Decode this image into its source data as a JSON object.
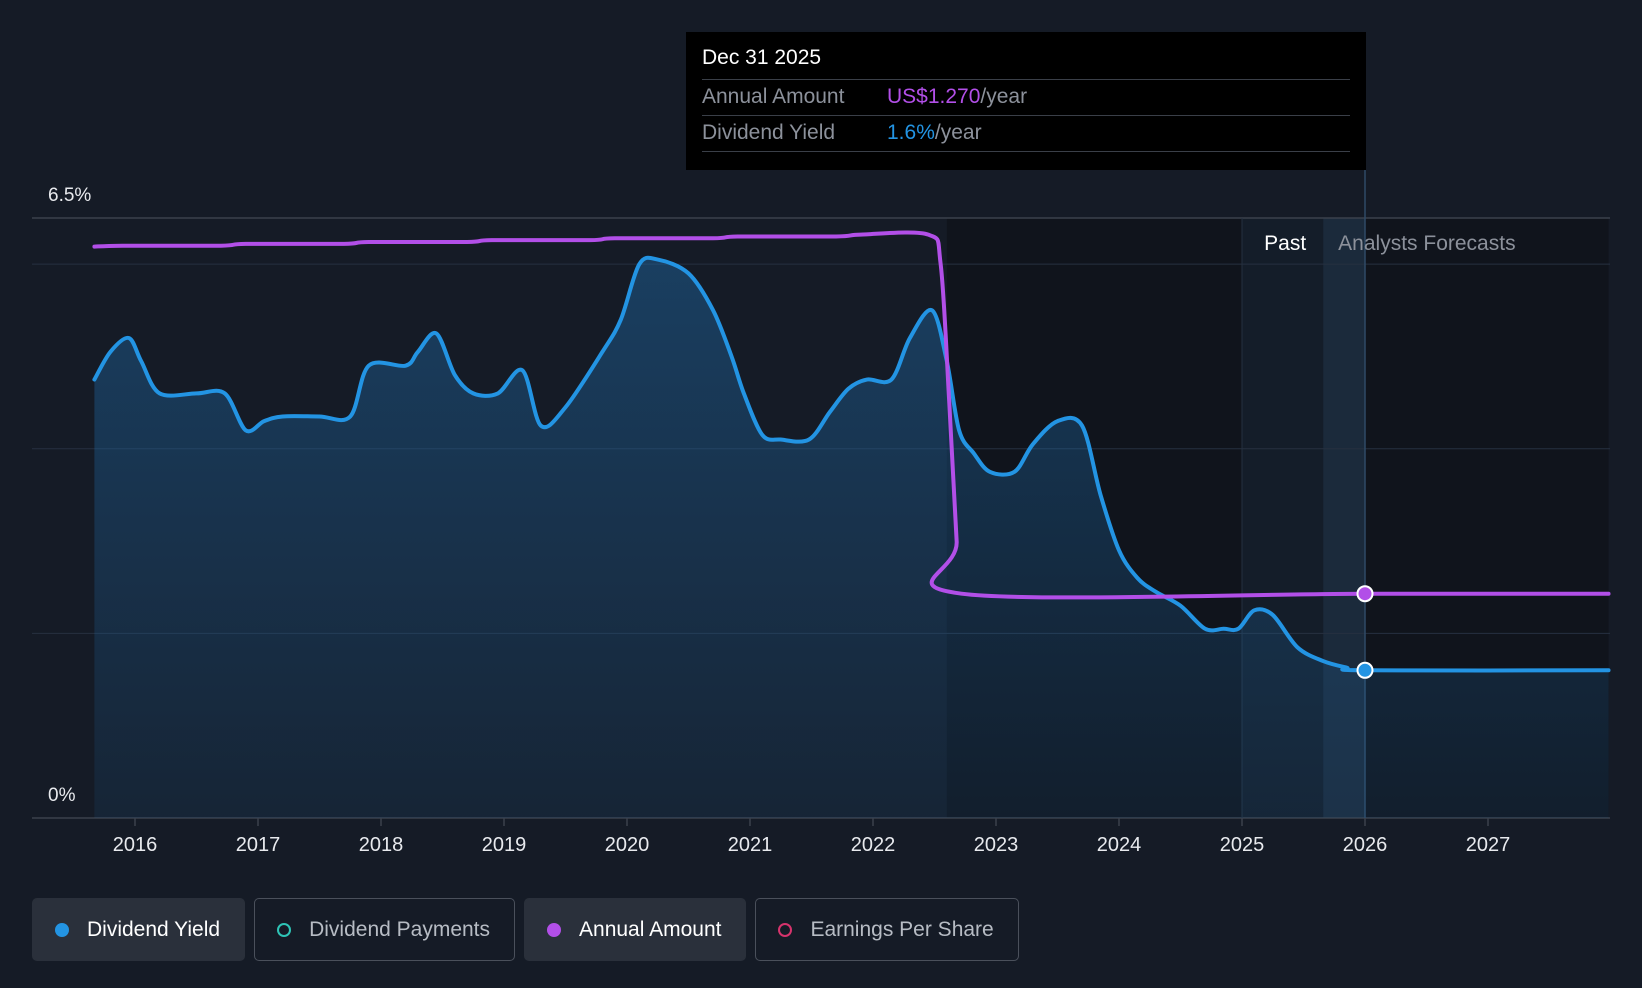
{
  "tooltip": {
    "date": "Dec 31 2025",
    "rows": [
      {
        "label": "Annual Amount",
        "value": "US$1.270",
        "unit": "/year",
        "color": "#b24fe8"
      },
      {
        "label": "Dividend Yield",
        "value": "1.6%",
        "unit": "/year",
        "color": "#2394e3"
      }
    ]
  },
  "regions": {
    "past_label": "Past",
    "forecast_label": "Analysts Forecasts"
  },
  "legend": [
    {
      "label": "Dividend Yield",
      "color": "#2394e3",
      "style": "filled",
      "active": true
    },
    {
      "label": "Dividend Payments",
      "color": "#2ec4b6",
      "style": "hollow",
      "active": false
    },
    {
      "label": "Annual Amount",
      "color": "#b24fe8",
      "style": "filled",
      "active": true
    },
    {
      "label": "Earnings Per Share",
      "color": "#d6336c",
      "style": "hollow",
      "active": false
    }
  ],
  "chart_data": {
    "type": "line",
    "title": "",
    "xlabel": "",
    "ylabel": "",
    "ylim": [
      0,
      6.5
    ],
    "y_tick_labels": [
      "6.5%",
      "0%"
    ],
    "x_tick_labels": [
      "2016",
      "2017",
      "2018",
      "2019",
      "2020",
      "2021",
      "2022",
      "2023",
      "2024",
      "2025",
      "2026",
      "2027"
    ],
    "xlim": [
      2015.3,
      2027.98
    ],
    "forecast_start": 2025.66,
    "current_date": 2026.0,
    "grid": true,
    "series": [
      {
        "name": "Dividend Yield",
        "color": "#2394e3",
        "fill": true,
        "points": [
          [
            2015.67,
            4.75
          ],
          [
            2015.8,
            5.05
          ],
          [
            2015.95,
            5.2
          ],
          [
            2016.05,
            4.95
          ],
          [
            2016.2,
            4.6
          ],
          [
            2016.5,
            4.6
          ],
          [
            2016.73,
            4.6
          ],
          [
            2016.9,
            4.2
          ],
          [
            2017.05,
            4.3
          ],
          [
            2017.2,
            4.35
          ],
          [
            2017.5,
            4.35
          ],
          [
            2017.75,
            4.35
          ],
          [
            2017.9,
            4.9
          ],
          [
            2018.2,
            4.9
          ],
          [
            2018.3,
            5.05
          ],
          [
            2018.45,
            5.25
          ],
          [
            2018.6,
            4.8
          ],
          [
            2018.75,
            4.6
          ],
          [
            2018.95,
            4.6
          ],
          [
            2019.15,
            4.85
          ],
          [
            2019.3,
            4.25
          ],
          [
            2019.5,
            4.45
          ],
          [
            2019.8,
            5.05
          ],
          [
            2019.95,
            5.4
          ],
          [
            2020.1,
            6.0
          ],
          [
            2020.25,
            6.05
          ],
          [
            2020.5,
            5.9
          ],
          [
            2020.7,
            5.5
          ],
          [
            2020.85,
            5.0
          ],
          [
            2020.95,
            4.6
          ],
          [
            2021.1,
            4.15
          ],
          [
            2021.25,
            4.1
          ],
          [
            2021.48,
            4.1
          ],
          [
            2021.65,
            4.4
          ],
          [
            2021.8,
            4.65
          ],
          [
            2021.95,
            4.75
          ],
          [
            2022.15,
            4.75
          ],
          [
            2022.3,
            5.2
          ],
          [
            2022.48,
            5.5
          ],
          [
            2022.6,
            4.95
          ],
          [
            2022.7,
            4.2
          ],
          [
            2022.82,
            3.95
          ],
          [
            2022.95,
            3.75
          ],
          [
            2023.15,
            3.75
          ],
          [
            2023.3,
            4.05
          ],
          [
            2023.5,
            4.3
          ],
          [
            2023.7,
            4.25
          ],
          [
            2023.85,
            3.5
          ],
          [
            2024.0,
            2.9
          ],
          [
            2024.15,
            2.6
          ],
          [
            2024.3,
            2.45
          ],
          [
            2024.5,
            2.3
          ],
          [
            2024.7,
            2.05
          ],
          [
            2024.85,
            2.05
          ],
          [
            2024.97,
            2.05
          ],
          [
            2025.1,
            2.25
          ],
          [
            2025.25,
            2.2
          ],
          [
            2025.45,
            1.85
          ],
          [
            2025.66,
            1.7
          ],
          [
            2025.85,
            1.63
          ],
          [
            2026.0,
            1.6
          ],
          [
            2027.98,
            1.6
          ]
        ]
      },
      {
        "name": "Annual Amount",
        "color": "#b24fe8",
        "fill": false,
        "points": [
          [
            2015.67,
            6.19
          ],
          [
            2015.9,
            6.2
          ],
          [
            2016.7,
            6.2
          ],
          [
            2016.9,
            6.22
          ],
          [
            2017.7,
            6.22
          ],
          [
            2017.9,
            6.24
          ],
          [
            2018.7,
            6.24
          ],
          [
            2018.9,
            6.26
          ],
          [
            2019.7,
            6.26
          ],
          [
            2019.9,
            6.28
          ],
          [
            2020.7,
            6.28
          ],
          [
            2020.9,
            6.3
          ],
          [
            2021.7,
            6.3
          ],
          [
            2021.9,
            6.32
          ],
          [
            2022.45,
            6.32
          ],
          [
            2022.55,
            6.0
          ],
          [
            2022.62,
            4.5
          ],
          [
            2022.68,
            3.0
          ],
          [
            2022.72,
            2.43
          ],
          [
            2026.0,
            2.43
          ],
          [
            2027.98,
            2.43
          ]
        ]
      }
    ]
  }
}
